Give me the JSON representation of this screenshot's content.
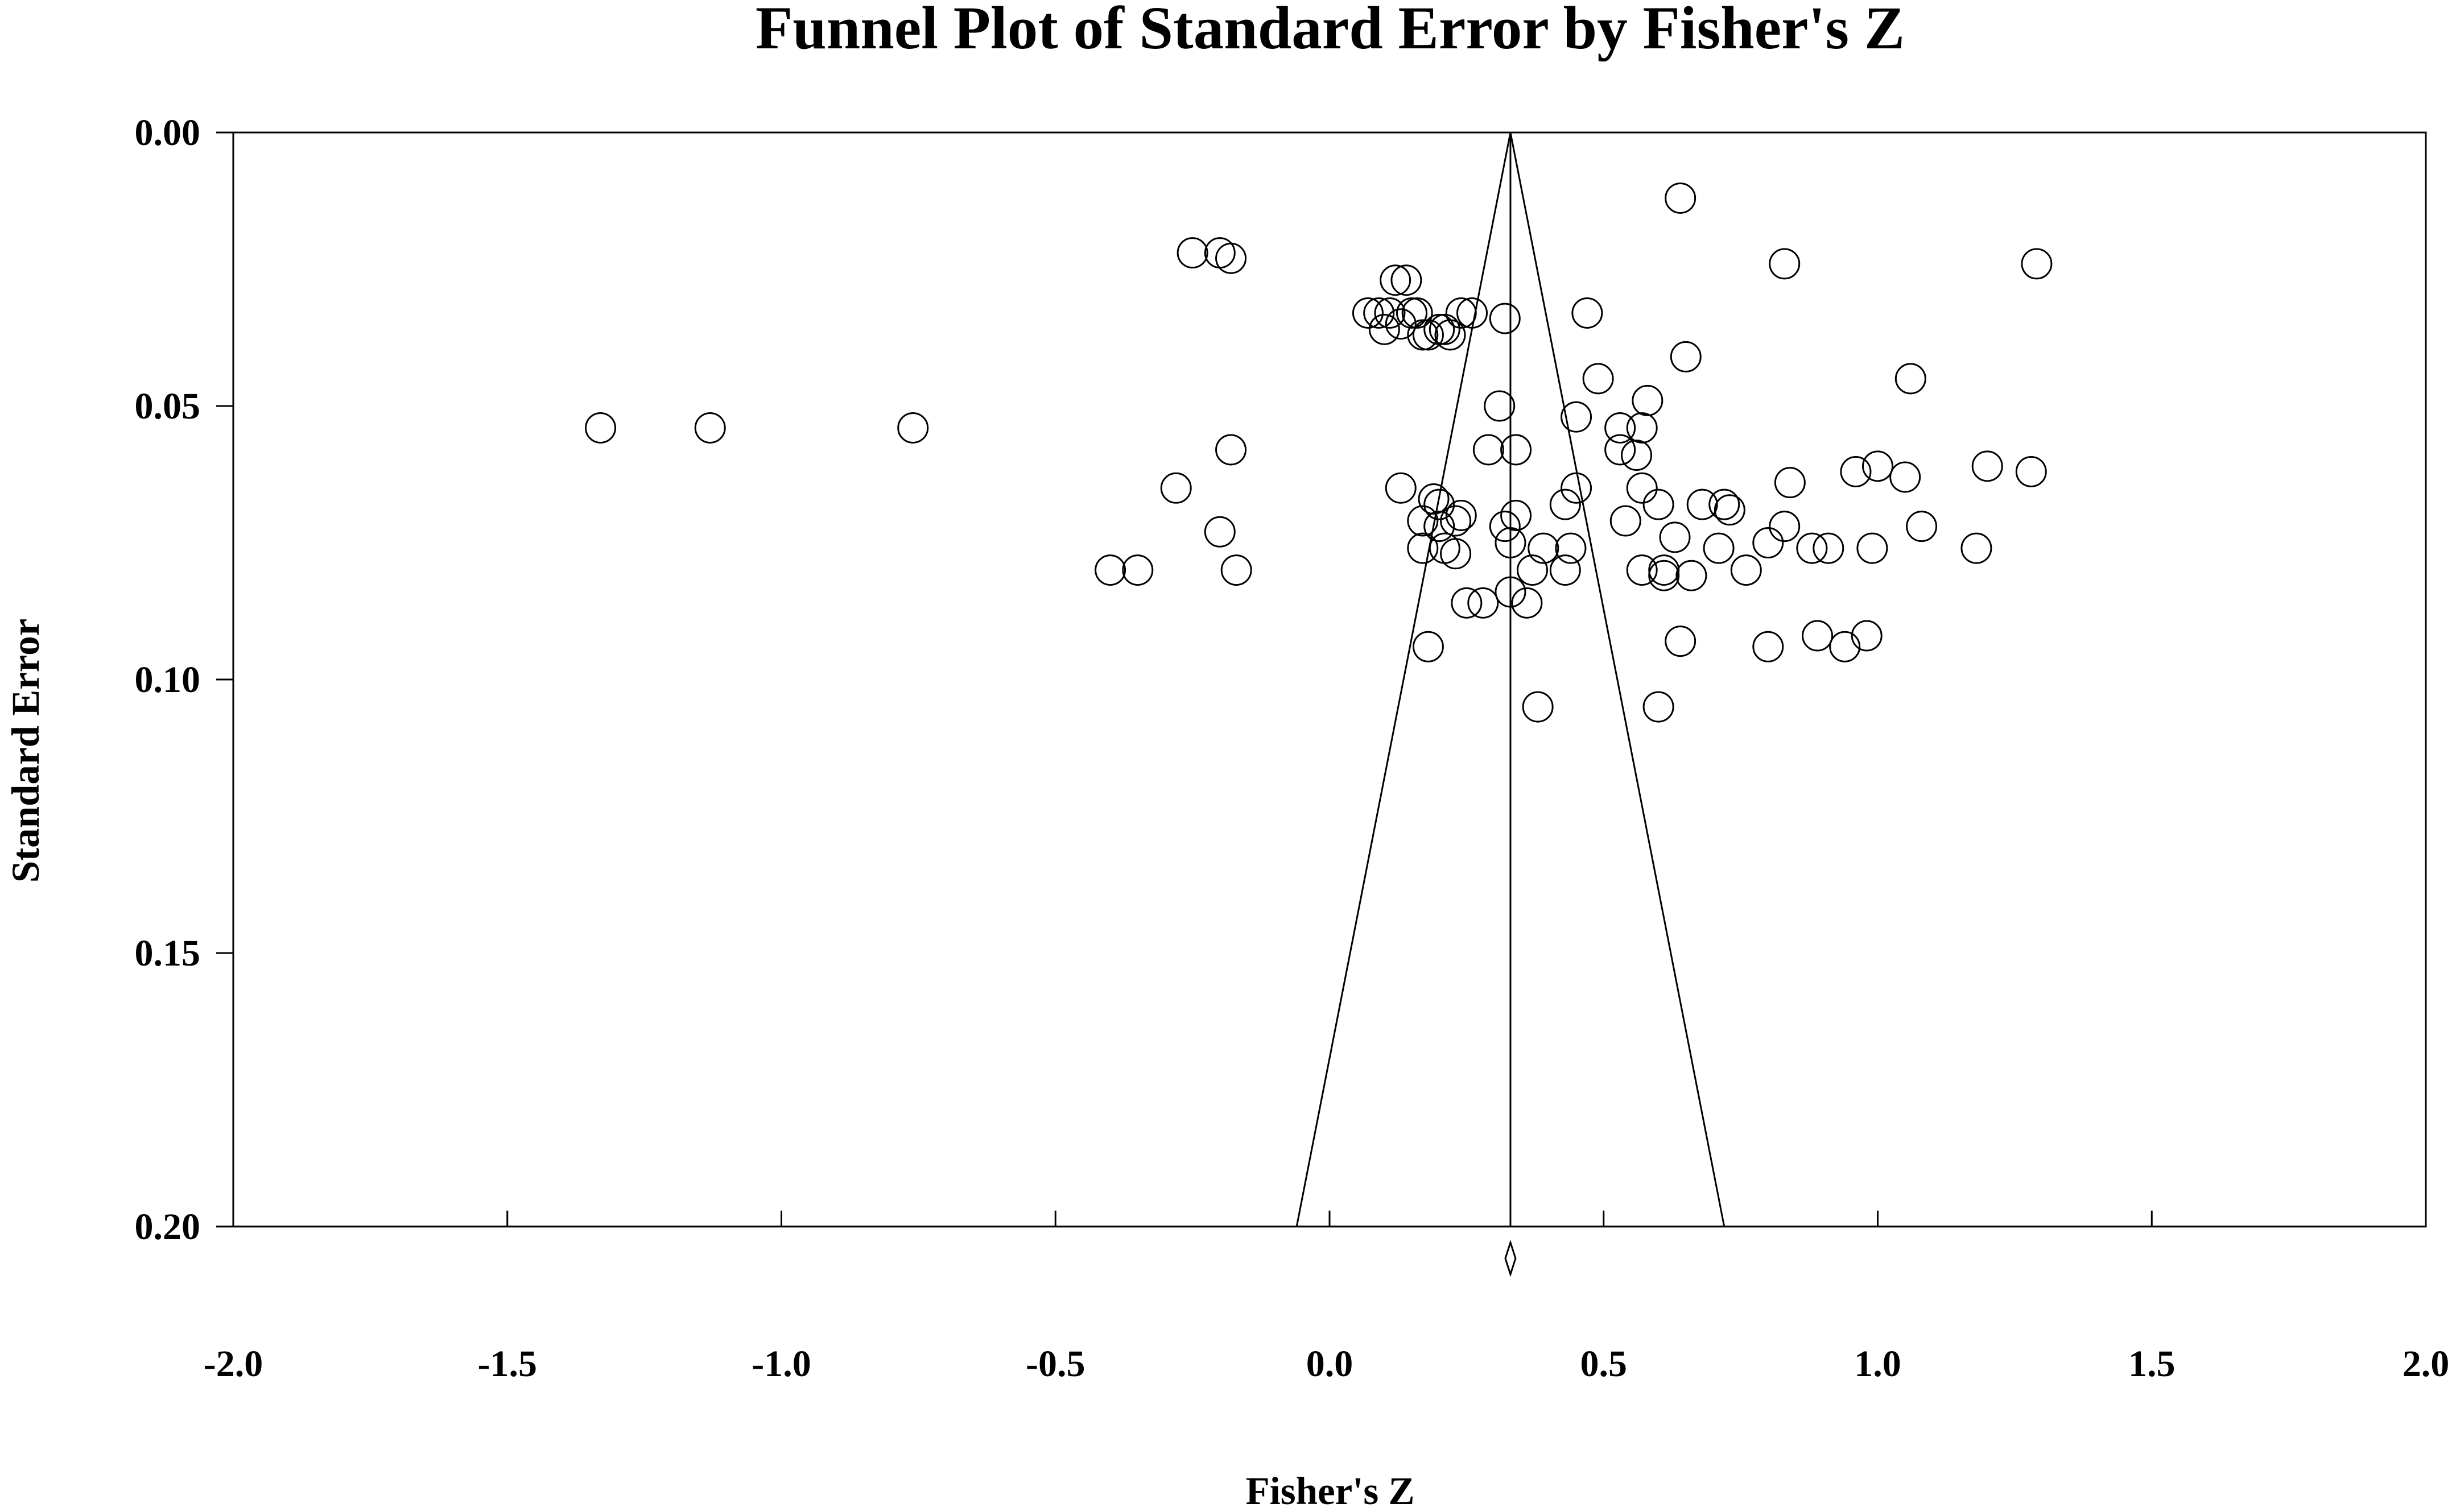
{
  "chart_data": {
    "type": "scatter",
    "title": "Funnel Plot of Standard Error by Fisher's Z",
    "xlabel": "Fisher's Z",
    "ylabel": "Standard Error",
    "xlim": [
      -2.0,
      2.0
    ],
    "ylim": [
      0.0,
      0.2
    ],
    "y_inverted": true,
    "x_ticks": [
      "-2.0",
      "-1.5",
      "-1.0",
      "-0.5",
      "0.0",
      "0.5",
      "1.0",
      "1.5",
      "2.0"
    ],
    "y_ticks": [
      "0.00",
      "0.05",
      "0.10",
      "0.15",
      "0.20"
    ],
    "grid": false,
    "marker": "open-circle",
    "summary_effect": 0.33,
    "funnel": {
      "apex": [
        0.33,
        0.0
      ],
      "base_left": [
        -0.06,
        0.2
      ],
      "base_right": [
        0.72,
        0.2
      ]
    },
    "points": [
      [
        -1.33,
        0.054
      ],
      [
        -1.13,
        0.054
      ],
      [
        -0.76,
        0.054
      ],
      [
        -0.25,
        0.022
      ],
      [
        -0.2,
        0.022
      ],
      [
        -0.18,
        0.023
      ],
      [
        -0.28,
        0.065
      ],
      [
        -0.2,
        0.073
      ],
      [
        -0.18,
        0.058
      ],
      [
        -0.17,
        0.08
      ],
      [
        -0.4,
        0.08
      ],
      [
        -0.35,
        0.08
      ],
      [
        0.07,
        0.033
      ],
      [
        0.09,
        0.033
      ],
      [
        0.1,
        0.036
      ],
      [
        0.11,
        0.033
      ],
      [
        0.12,
        0.027
      ],
      [
        0.13,
        0.035
      ],
      [
        0.14,
        0.027
      ],
      [
        0.15,
        0.033
      ],
      [
        0.16,
        0.033
      ],
      [
        0.17,
        0.037
      ],
      [
        0.18,
        0.037
      ],
      [
        0.2,
        0.036
      ],
      [
        0.21,
        0.036
      ],
      [
        0.22,
        0.037
      ],
      [
        0.24,
        0.033
      ],
      [
        0.26,
        0.033
      ],
      [
        0.32,
        0.034
      ],
      [
        0.13,
        0.065
      ],
      [
        0.19,
        0.067
      ],
      [
        0.2,
        0.068
      ],
      [
        0.17,
        0.071
      ],
      [
        0.2,
        0.072
      ],
      [
        0.23,
        0.071
      ],
      [
        0.24,
        0.07
      ],
      [
        0.17,
        0.076
      ],
      [
        0.21,
        0.076
      ],
      [
        0.23,
        0.077
      ],
      [
        0.18,
        0.094
      ],
      [
        0.25,
        0.086
      ],
      [
        0.28,
        0.086
      ],
      [
        0.29,
        0.058
      ],
      [
        0.31,
        0.05
      ],
      [
        0.32,
        0.072
      ],
      [
        0.33,
        0.075
      ],
      [
        0.34,
        0.07
      ],
      [
        0.34,
        0.058
      ],
      [
        0.33,
        0.084
      ],
      [
        0.36,
        0.086
      ],
      [
        0.37,
        0.08
      ],
      [
        0.38,
        0.105
      ],
      [
        0.39,
        0.076
      ],
      [
        0.43,
        0.068
      ],
      [
        0.43,
        0.08
      ],
      [
        0.44,
        0.076
      ],
      [
        0.45,
        0.065
      ],
      [
        0.45,
        0.052
      ],
      [
        0.47,
        0.033
      ],
      [
        0.49,
        0.045
      ],
      [
        0.53,
        0.054
      ],
      [
        0.53,
        0.058
      ],
      [
        0.54,
        0.071
      ],
      [
        0.56,
        0.059
      ],
      [
        0.57,
        0.08
      ],
      [
        0.57,
        0.065
      ],
      [
        0.57,
        0.054
      ],
      [
        0.58,
        0.049
      ],
      [
        0.6,
        0.068
      ],
      [
        0.61,
        0.08
      ],
      [
        0.61,
        0.081
      ],
      [
        0.6,
        0.105
      ],
      [
        0.64,
        0.012
      ],
      [
        0.63,
        0.074
      ],
      [
        0.64,
        0.093
      ],
      [
        0.65,
        0.041
      ],
      [
        0.66,
        0.081
      ],
      [
        0.68,
        0.068
      ],
      [
        0.71,
        0.076
      ],
      [
        0.72,
        0.068
      ],
      [
        0.73,
        0.069
      ],
      [
        0.76,
        0.08
      ],
      [
        0.8,
        0.075
      ],
      [
        0.8,
        0.094
      ],
      [
        0.83,
        0.024
      ],
      [
        0.83,
        0.072
      ],
      [
        0.84,
        0.064
      ],
      [
        0.88,
        0.076
      ],
      [
        0.89,
        0.092
      ],
      [
        0.91,
        0.076
      ],
      [
        0.94,
        0.094
      ],
      [
        0.96,
        0.062
      ],
      [
        0.98,
        0.092
      ],
      [
        0.99,
        0.076
      ],
      [
        1.0,
        0.061
      ],
      [
        1.05,
        0.063
      ],
      [
        1.06,
        0.045
      ],
      [
        1.08,
        0.072
      ],
      [
        1.18,
        0.076
      ],
      [
        1.2,
        0.061
      ],
      [
        1.28,
        0.062
      ],
      [
        1.29,
        0.024
      ]
    ]
  }
}
